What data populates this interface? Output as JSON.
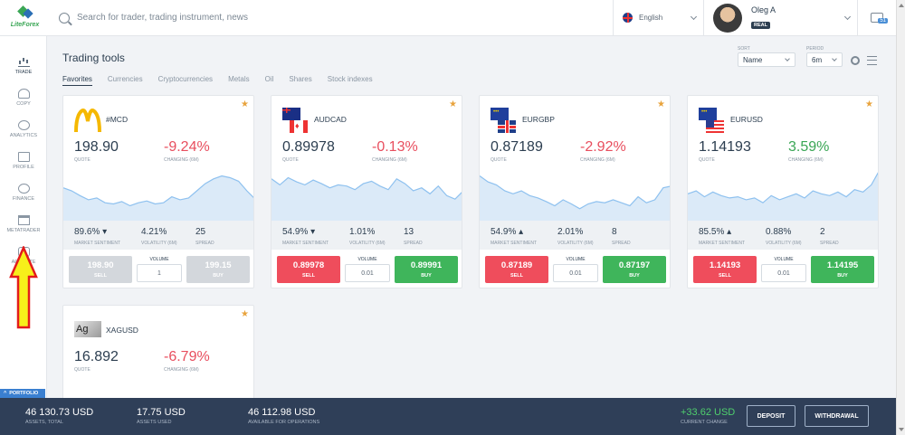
{
  "header": {
    "logo_text": "LiteForex",
    "search_placeholder": "Search for trader, trading instrument, news",
    "language": "English",
    "user_name": "Oleg A",
    "account_badge": "REAL",
    "notifications_count": "51"
  },
  "sidebar": {
    "items": [
      {
        "label": "TRADE",
        "icon": "chart-bars-icon"
      },
      {
        "label": "COPY",
        "icon": "copy-user-icon"
      },
      {
        "label": "ANALYTICS",
        "icon": "analytics-icon"
      },
      {
        "label": "PROFILE",
        "icon": "profile-card-icon"
      },
      {
        "label": "FINANCE",
        "icon": "dollar-circle-icon"
      },
      {
        "label": "METATRADER",
        "icon": "monitor-icon"
      },
      {
        "label": "AFFILIATE",
        "icon": "handshake-icon"
      }
    ],
    "portfolio_label": "PORTFOLIO"
  },
  "main": {
    "title": "Trading tools",
    "tabs": [
      "Favorites",
      "Currencies",
      "Cryptocurrencies",
      "Metals",
      "Oil",
      "Shares",
      "Stock indexes"
    ],
    "sort_label": "SORT",
    "sort_value": "Name",
    "period_label": "PERIOD",
    "period_value": "6m"
  },
  "labels": {
    "quote": "QUOTE",
    "changing": "CHANGING (6M)",
    "sentiment": "MARKET SENTIMENT",
    "volatility": "VOLATILITY (6M)",
    "spread": "SPREAD",
    "volume": "VOLUME",
    "sell": "SELL",
    "buy": "BUY"
  },
  "cards": [
    {
      "symbol": "#MCD",
      "quote": "198.90",
      "change": "-9.24%",
      "sentiment": "89.6%",
      "sentiment_dir": "down",
      "volatility": "4.21%",
      "spread": "25",
      "volume": "1",
      "sell": "198.90",
      "buy": "199.15",
      "disabled": true,
      "trend": [
        0.55,
        0.5,
        0.42,
        0.35,
        0.38,
        0.3,
        0.28,
        0.32,
        0.25,
        0.3,
        0.33,
        0.28,
        0.3,
        0.4,
        0.35,
        0.38,
        0.5,
        0.62,
        0.7,
        0.75,
        0.72,
        0.66,
        0.5,
        0.36
      ]
    },
    {
      "symbol": "AUDCAD",
      "quote": "0.89978",
      "change": "-0.13%",
      "sentiment": "54.9%",
      "sentiment_dir": "down",
      "volatility": "1.01%",
      "spread": "13",
      "volume": "0.01",
      "sell": "0.89978",
      "buy": "0.89991",
      "disabled": false,
      "trend": [
        0.7,
        0.6,
        0.72,
        0.65,
        0.6,
        0.68,
        0.62,
        0.55,
        0.6,
        0.58,
        0.52,
        0.62,
        0.66,
        0.58,
        0.52,
        0.7,
        0.62,
        0.5,
        0.55,
        0.45,
        0.58,
        0.42,
        0.36,
        0.5
      ]
    },
    {
      "symbol": "EURGBP",
      "quote": "0.87189",
      "change": "-2.92%",
      "sentiment": "54.9%",
      "sentiment_dir": "up",
      "volatility": "2.01%",
      "spread": "8",
      "volume": "0.01",
      "sell": "0.87189",
      "buy": "0.87197",
      "disabled": false,
      "trend": [
        0.75,
        0.65,
        0.6,
        0.5,
        0.45,
        0.5,
        0.42,
        0.38,
        0.32,
        0.25,
        0.35,
        0.28,
        0.2,
        0.28,
        0.32,
        0.3,
        0.35,
        0.3,
        0.25,
        0.4,
        0.3,
        0.35,
        0.55,
        0.58
      ]
    },
    {
      "symbol": "EURUSD",
      "quote": "1.14193",
      "change": "3.59%",
      "sentiment": "85.5%",
      "sentiment_dir": "up",
      "volatility": "0.88%",
      "spread": "2",
      "volume": "0.01",
      "sell": "1.14193",
      "buy": "1.14195",
      "disabled": false,
      "trend": [
        0.45,
        0.5,
        0.4,
        0.48,
        0.42,
        0.38,
        0.4,
        0.35,
        0.38,
        0.3,
        0.42,
        0.35,
        0.4,
        0.45,
        0.38,
        0.5,
        0.45,
        0.42,
        0.48,
        0.4,
        0.52,
        0.48,
        0.6,
        0.85
      ]
    },
    {
      "symbol": "XAGUSD",
      "quote": "16.892",
      "change": "-6.79%",
      "sentiment": "",
      "sentiment_dir": "",
      "volatility": "",
      "spread": "",
      "volume": "",
      "sell": "",
      "buy": "",
      "disabled": false,
      "trend": [
        0.3,
        0.28,
        0.35,
        0.3,
        0.33,
        0.25,
        0.3,
        0.28,
        0.35,
        0.3,
        0.32,
        0.28,
        0.34,
        0.3,
        0.36,
        0.4,
        0.35,
        0.33,
        0.4,
        0.45,
        0.5,
        0.4,
        0.35,
        0.3
      ]
    }
  ],
  "footer": {
    "assets_total": "46 130.73 USD",
    "assets_total_label": "ASSETS, TOTAL",
    "assets_used": "17.75 USD",
    "assets_used_label": "ASSETS USED",
    "available": "46 112.98 USD",
    "available_label": "AVAILABLE FOR OPERATIONS",
    "current_change": "+33.62 USD",
    "current_change_label": "CURRENT CHANGE",
    "deposit_label": "DEPOSIT",
    "withdrawal_label": "WITHDRAWAL"
  },
  "colors": {
    "sell": "#ef4d5c",
    "buy": "#3fb55b",
    "negative": "#e84e5e",
    "positive": "#3aa655",
    "footer_bg": "#2f3f58"
  }
}
